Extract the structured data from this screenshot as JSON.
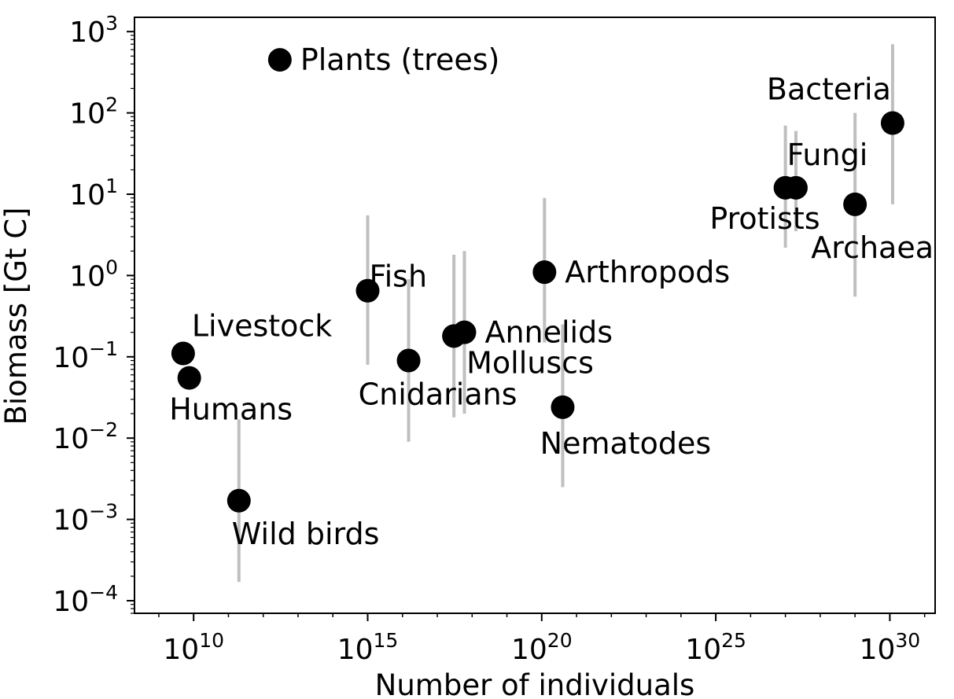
{
  "chart_data": {
    "type": "scatter",
    "xlabel": "Number of individuals",
    "ylabel": "Biomass [Gt C]",
    "x_scale": "log",
    "y_scale": "log",
    "xlim": [
      200000000.0,
      2e+31
    ],
    "ylim": [
      7e-05,
      1500
    ],
    "x_ticks": [
      {
        "base": "10",
        "exp": "10",
        "value": 10000000000.0
      },
      {
        "base": "10",
        "exp": "15",
        "value": 1000000000000000.0
      },
      {
        "base": "10",
        "exp": "20",
        "value": 1e+20
      },
      {
        "base": "10",
        "exp": "25",
        "value": 1e+25
      },
      {
        "base": "10",
        "exp": "30",
        "value": 1e+30
      }
    ],
    "y_ticks": [
      {
        "base": "10",
        "exp": "3",
        "value": 1000
      },
      {
        "base": "10",
        "exp": "2",
        "value": 100
      },
      {
        "base": "10",
        "exp": "1",
        "value": 10
      },
      {
        "base": "10",
        "exp": "0",
        "value": 1
      },
      {
        "base": "10",
        "exp": "−1",
        "value": 0.1
      },
      {
        "base": "10",
        "exp": "−2",
        "value": 0.01
      },
      {
        "base": "10",
        "exp": "−3",
        "value": 0.001
      },
      {
        "base": "10",
        "exp": "−4",
        "value": 0.0001
      }
    ],
    "grid": false,
    "marker_color": "#000000",
    "errorbar_color": "#bfbfbf",
    "points": [
      {
        "label": "Plants (trees)",
        "x": 3000000000000.0,
        "y": 450,
        "y_low": null,
        "y_high": null,
        "label_pos": "right"
      },
      {
        "label": "Bacteria",
        "x": 1.2e+30,
        "y": 75,
        "y_low": 7.5,
        "y_high": 700,
        "label_pos": "above-left"
      },
      {
        "label": "Fungi",
        "x": 2e+27,
        "y": 12,
        "y_low": 3.5,
        "y_high": 60,
        "label_pos": "above"
      },
      {
        "label": "Protists",
        "x": 1e+27,
        "y": 12,
        "y_low": 2.2,
        "y_high": 70,
        "label_pos": "below-left"
      },
      {
        "label": "Archaea",
        "x": 1e+29,
        "y": 7.5,
        "y_low": 0.55,
        "y_high": 100,
        "label_pos": "below"
      },
      {
        "label": "Arthropods",
        "x": 1.2e+20,
        "y": 1.1,
        "y_low": 0.15,
        "y_high": 9,
        "label_pos": "right"
      },
      {
        "label": "Fish",
        "x": 1000000000000000.0,
        "y": 0.65,
        "y_low": 0.08,
        "y_high": 5.5,
        "label_pos": "above-right"
      },
      {
        "label": "Annelids",
        "x": 6e+17,
        "y": 0.2,
        "y_low": 0.02,
        "y_high": 2.0,
        "label_pos": "right"
      },
      {
        "label": "Molluscs",
        "x": 3e+17,
        "y": 0.18,
        "y_low": 0.018,
        "y_high": 1.8,
        "label_pos": "below-right"
      },
      {
        "label": "Cnidarians",
        "x": 1.5e+16,
        "y": 0.09,
        "y_low": 0.009,
        "y_high": 0.9,
        "label_pos": "below"
      },
      {
        "label": "Livestock",
        "x": 5000000000.0,
        "y": 0.11,
        "y_low": null,
        "y_high": null,
        "label_pos": "above-right"
      },
      {
        "label": "Humans",
        "x": 7500000000.0,
        "y": 0.055,
        "y_low": null,
        "y_high": null,
        "label_pos": "below"
      },
      {
        "label": "Nematodes",
        "x": 4e+20,
        "y": 0.024,
        "y_low": 0.0025,
        "y_high": 0.25,
        "label_pos": "below"
      },
      {
        "label": "Wild birds",
        "x": 200000000000.0,
        "y": 0.0017,
        "y_low": 0.00017,
        "y_high": 0.017,
        "label_pos": "below-right"
      }
    ]
  }
}
